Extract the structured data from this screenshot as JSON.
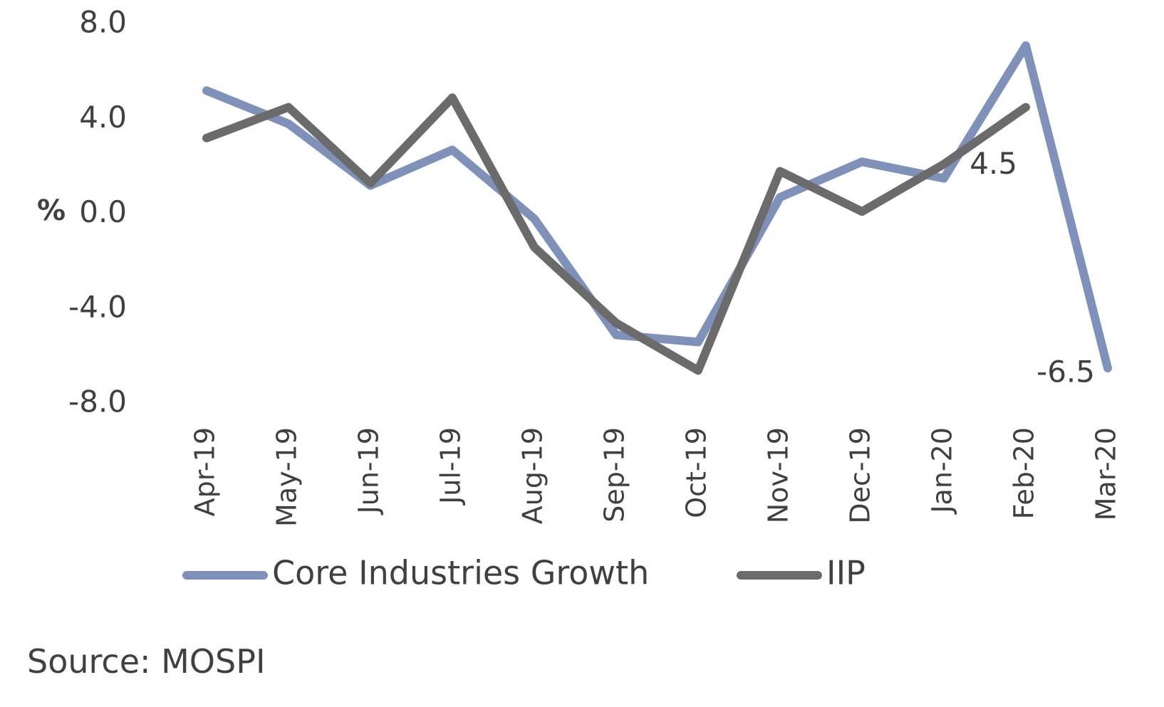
{
  "chart_data": {
    "type": "line",
    "categories": [
      "Apr-19",
      "May-19",
      "Jun-19",
      "Jul-19",
      "Aug-19",
      "Sep-19",
      "Oct-19",
      "Nov-19",
      "Dec-19",
      "Jan-20",
      "Feb-20",
      "Mar-20"
    ],
    "series": [
      {
        "name": "Core Industries Growth",
        "color": "#7f91b9",
        "values": [
          5.2,
          3.8,
          1.2,
          2.7,
          -0.2,
          -5.1,
          -5.4,
          0.7,
          2.2,
          1.5,
          7.1,
          -6.5
        ]
      },
      {
        "name": "IIP",
        "color": "#6b6b6b",
        "values": [
          3.2,
          4.5,
          1.3,
          4.9,
          -1.4,
          -4.6,
          -6.6,
          1.8,
          0.1,
          2.1,
          4.5,
          null
        ]
      }
    ],
    "ylabel": "%",
    "ylim": [
      -8.0,
      8.0
    ],
    "yticks": [
      "8.0",
      "4.0",
      "0.0",
      "-4.0",
      "-8.0"
    ],
    "annotations": [
      {
        "text": "4.5",
        "category": "Feb-20",
        "series": "IIP"
      },
      {
        "text": "-6.5",
        "category": "Mar-20",
        "series": "Core Industries Growth"
      }
    ],
    "legend": "bottom",
    "grid": false
  },
  "source": "Source: MOSPI"
}
